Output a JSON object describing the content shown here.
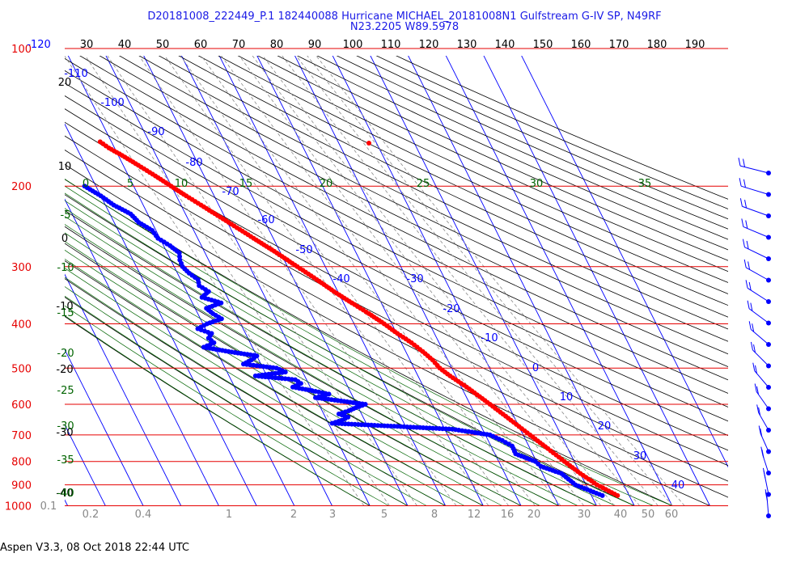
{
  "header": {
    "title": "D20181008_222449_P.1 182440088 Hurricane MICHAEL_20181008N1 Gulfstream G-IV SP, N49RF",
    "subtitle": "N23.2205 W89.5978"
  },
  "footer": {
    "text": "Aspen V3.3, 08 Oct 2018  22:44 UTC"
  },
  "chart_data": {
    "type": "skew-t",
    "axes": {
      "pressure_labels": [
        "100",
        "200",
        "300",
        "400",
        "500",
        "600",
        "700",
        "800",
        "900",
        "1000"
      ],
      "top_scale_labels": [
        "-120",
        "30",
        "40",
        "50",
        "60",
        "70",
        "80",
        "90",
        "100",
        "110",
        "120",
        "130",
        "140",
        "150",
        "160",
        "170",
        "180",
        "190"
      ],
      "left_height_labels": [
        "20",
        "10",
        "0",
        "-10",
        "-20",
        "-30",
        "-40"
      ],
      "temperature_labels": [
        "-110",
        "-100",
        "-90",
        "-80",
        "-70",
        "-60",
        "-50",
        "-40",
        "-30",
        "-20",
        "-10",
        "0",
        "10",
        "20",
        "30",
        "40"
      ],
      "theta_e_labels": [
        "0",
        "5",
        "10",
        "15",
        "20",
        "25",
        "30",
        "35"
      ],
      "mixing_ratio_labels": [
        "0.1",
        "0.2",
        "0.4",
        "1",
        "2",
        "3",
        "5",
        "8",
        "12",
        "16",
        "20",
        "30",
        "40",
        "50",
        "60"
      ],
      "left_theta_labels": [
        "-5",
        "-10",
        "-15",
        "-20",
        "-25",
        "-30",
        "-35",
        "-40"
      ]
    },
    "series": [
      {
        "name": "",
        "color": "#ff0000",
        "points": [
          [
            950,
            26.9
          ],
          [
            900,
            22.9
          ],
          [
            850,
            20.0
          ],
          [
            800,
            17.4
          ],
          [
            750,
            14.7
          ],
          [
            700,
            11.8
          ],
          [
            650,
            8.7
          ],
          [
            600,
            5.3
          ],
          [
            550,
            1.4
          ],
          [
            520,
            -1.5
          ],
          [
            500,
            -3.2
          ],
          [
            480,
            -4.0
          ],
          [
            460,
            -5.5
          ],
          [
            440,
            -7.3
          ],
          [
            420,
            -9.8
          ],
          [
            400,
            -12.0
          ],
          [
            380,
            -14.7
          ],
          [
            360,
            -17.8
          ],
          [
            340,
            -21.0
          ],
          [
            320,
            -24.0
          ],
          [
            300,
            -27.4
          ],
          [
            280,
            -31.0
          ],
          [
            260,
            -35.2
          ],
          [
            240,
            -39.7
          ],
          [
            220,
            -44.7
          ],
          [
            210,
            -47.4
          ],
          [
            200,
            -50.1
          ],
          [
            190,
            -52.9
          ],
          [
            180,
            -56.0
          ],
          [
            170,
            -59.5
          ],
          [
            165,
            -61.5
          ],
          [
            160,
            -63.0
          ]
        ]
      },
      {
        "name": "",
        "color": "#0000ff",
        "points": [
          [
            950,
            22.9
          ],
          [
            900,
            17.2
          ],
          [
            850,
            15.0
          ],
          [
            820,
            10.5
          ],
          [
            800,
            9.7
          ],
          [
            770,
            5.5
          ],
          [
            740,
            5.6
          ],
          [
            720,
            3.7
          ],
          [
            700,
            1.2
          ],
          [
            690,
            -3.2
          ],
          [
            680,
            -8.0
          ],
          [
            670,
            -23.0
          ],
          [
            660,
            -39.0
          ],
          [
            650,
            -36.0
          ],
          [
            640,
            -34.0
          ],
          [
            630,
            -36.0
          ],
          [
            620,
            -33.0
          ],
          [
            610,
            -30.6
          ],
          [
            600,
            -27.7
          ],
          [
            590,
            -33.7
          ],
          [
            580,
            -40.0
          ],
          [
            570,
            -36.0
          ],
          [
            560,
            -40.0
          ],
          [
            550,
            -44.6
          ],
          [
            540,
            -42.0
          ],
          [
            530,
            -43.0
          ],
          [
            520,
            -53.0
          ],
          [
            510,
            -44.6
          ],
          [
            500,
            -46.4
          ],
          [
            490,
            -54.6
          ],
          [
            480,
            -52.0
          ],
          [
            470,
            -50.0
          ],
          [
            460,
            -56.9
          ],
          [
            450,
            -62.9
          ],
          [
            440,
            -59.6
          ],
          [
            430,
            -60.4
          ],
          [
            420,
            -59.0
          ],
          [
            410,
            -62.0
          ],
          [
            400,
            -58.9
          ],
          [
            390,
            -54.4
          ],
          [
            380,
            -56.0
          ],
          [
            370,
            -57.0
          ],
          [
            360,
            -52.4
          ],
          [
            350,
            -56.7
          ],
          [
            340,
            -54.2
          ],
          [
            330,
            -55.9
          ],
          [
            320,
            -55.4
          ],
          [
            310,
            -56.9
          ],
          [
            300,
            -57.8
          ],
          [
            290,
            -57.6
          ],
          [
            280,
            -56.8
          ],
          [
            270,
            -58.3
          ],
          [
            260,
            -60.5
          ],
          [
            250,
            -61.0
          ],
          [
            240,
            -63.5
          ],
          [
            230,
            -64.5
          ],
          [
            220,
            -67.8
          ],
          [
            210,
            -70.0
          ],
          [
            200,
            -73.0
          ]
        ]
      }
    ],
    "wind_barbs": [
      {
        "p": 190,
        "barbs": 2
      },
      {
        "p": 205,
        "barbs": 2
      },
      {
        "p": 225,
        "barbs": 2
      },
      {
        "p": 245,
        "barbs": 2
      },
      {
        "p": 270,
        "barbs": 2
      },
      {
        "p": 300,
        "barbs": 2
      },
      {
        "p": 330,
        "barbs": 2
      },
      {
        "p": 370,
        "barbs": 2
      },
      {
        "p": 420,
        "barbs": 2
      },
      {
        "p": 480,
        "barbs": 2
      },
      {
        "p": 530,
        "barbs": 2
      },
      {
        "p": 580,
        "barbs": 2
      },
      {
        "p": 640,
        "barbs": 2
      },
      {
        "p": 710,
        "barbs": 2
      },
      {
        "p": 780,
        "barbs": 2
      },
      {
        "p": 860,
        "barbs": 2
      },
      {
        "p": 960,
        "barbs": 2
      }
    ],
    "colors": {
      "isobar": "#e60000",
      "isotherm": "#0000ff",
      "dry_adiabat": "#000000",
      "moist_adiabat": "#006400",
      "mixing_ratio": "#888888",
      "temperature": "#ff0000",
      "dewpoint": "#0000ff"
    }
  }
}
